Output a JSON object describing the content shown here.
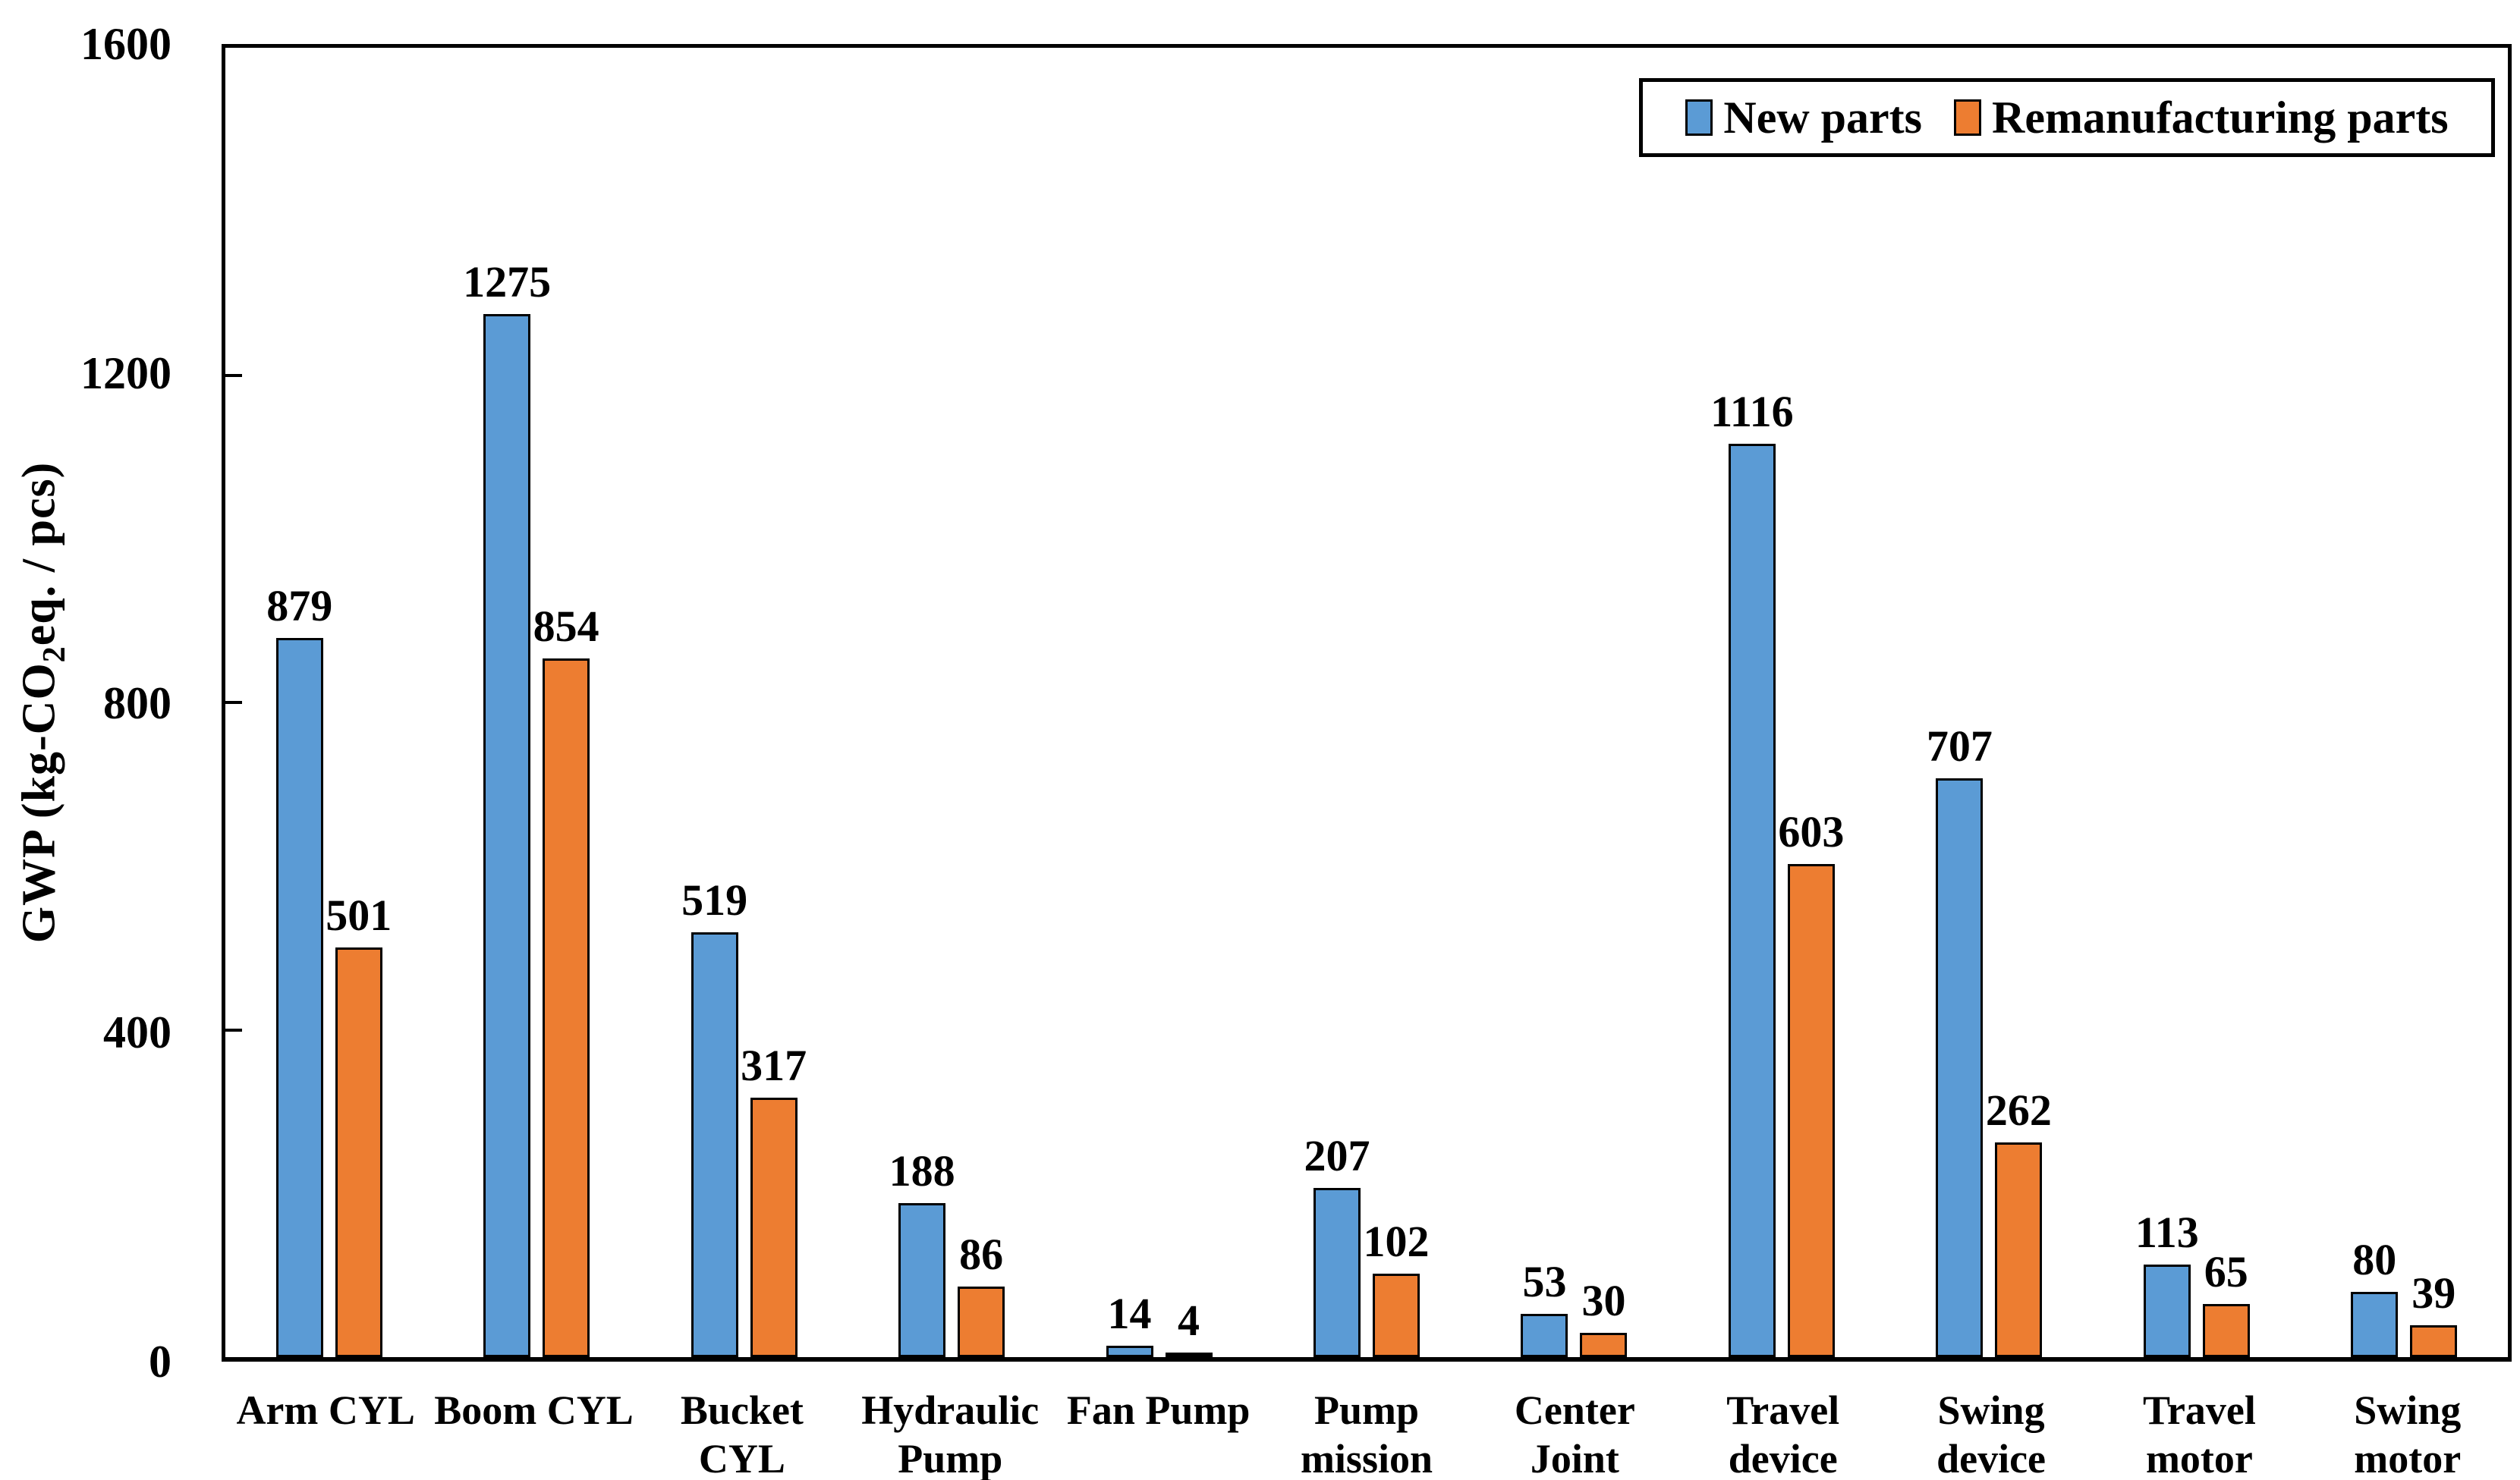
{
  "chart_data": {
    "type": "bar",
    "title": "",
    "ylabel": "GWP (kg-CO2eq. / pcs)",
    "ylabel_parts": {
      "prefix": "GWP (kg-CO",
      "subscript": "2",
      "suffix": "eq. / pcs)"
    },
    "xlabel": "",
    "grid": false,
    "legend_position": "top-right",
    "y_axis": {
      "min": 0,
      "max": 1600,
      "tick_step": 400,
      "ticks": [
        0,
        400,
        800,
        1200,
        1600
      ]
    },
    "categories": [
      {
        "label": "Arm CYL",
        "lines": [
          "Arm CYL"
        ]
      },
      {
        "label": "Boom CYL",
        "lines": [
          "Boom CYL"
        ]
      },
      {
        "label": "Bucket CYL",
        "lines": [
          "Bucket",
          "CYL"
        ]
      },
      {
        "label": "Hydraulic Pump",
        "lines": [
          "Hydraulic",
          "Pump"
        ]
      },
      {
        "label": "Fan Pump",
        "lines": [
          "Fan Pump"
        ]
      },
      {
        "label": "Pump mission",
        "lines": [
          "Pump",
          "mission"
        ]
      },
      {
        "label": "Center Joint",
        "lines": [
          "Center",
          "Joint"
        ]
      },
      {
        "label": "Travel device",
        "lines": [
          "Travel",
          "device"
        ]
      },
      {
        "label": "Swing device",
        "lines": [
          "Swing",
          "device"
        ]
      },
      {
        "label": "Travel motor",
        "lines": [
          "Travel",
          "motor"
        ]
      },
      {
        "label": "Swing motor",
        "lines": [
          "Swing",
          "motor"
        ]
      }
    ],
    "series": [
      {
        "name": "New parts",
        "color": "#5B9BD5",
        "values": [
          879,
          1275,
          519,
          188,
          14,
          207,
          53,
          1116,
          707,
          113,
          80
        ]
      },
      {
        "name": "Remanufacturing parts",
        "color": "#ED7D31",
        "values": [
          501,
          854,
          317,
          86,
          4,
          102,
          30,
          603,
          262,
          65,
          39
        ]
      }
    ],
    "colors": {
      "bar_border": "#000000",
      "axis": "#000000",
      "text": "#000000",
      "background": "#ffffff"
    }
  }
}
